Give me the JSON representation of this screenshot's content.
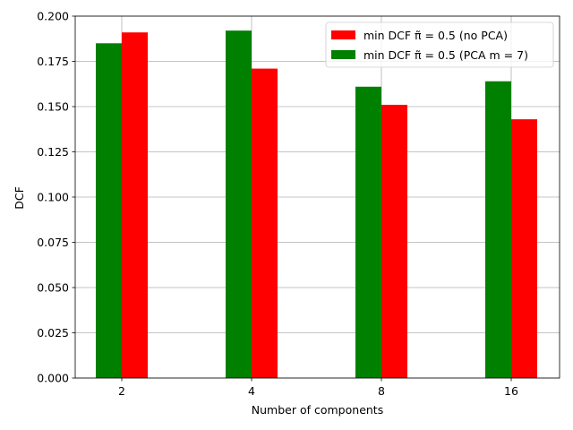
{
  "chart_data": {
    "type": "bar",
    "title": "",
    "xlabel": "Number of components",
    "ylabel": "DCF",
    "categories": [
      "2",
      "4",
      "8",
      "16"
    ],
    "ylim": [
      0,
      0.2
    ],
    "yticks": [
      "0.000",
      "0.025",
      "0.050",
      "0.075",
      "0.100",
      "0.125",
      "0.150",
      "0.175",
      "0.200"
    ],
    "grid": true,
    "legend_position": "top-right",
    "series": [
      {
        "name": "min DCF π̃ = 0.5 (PCA m = 7)",
        "color": "#008000",
        "values": [
          0.185,
          0.192,
          0.161,
          0.164
        ]
      },
      {
        "name": "min DCF π̃ = 0.5 (no PCA)",
        "color": "#ff0000",
        "values": [
          0.191,
          0.171,
          0.151,
          0.143
        ]
      }
    ],
    "legend_order": [
      1,
      0
    ]
  }
}
